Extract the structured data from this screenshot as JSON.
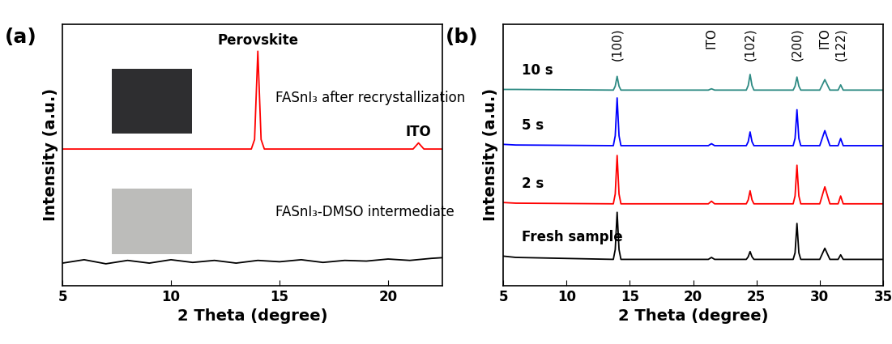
{
  "chart_data": [
    {
      "type": "line",
      "title": "(a)",
      "x_label": "2 Theta (degree)",
      "y_label": "Intensity (a.u.)",
      "xlim": [
        5,
        22.5
      ],
      "xticks": [
        5,
        10,
        15,
        20
      ],
      "ylim": [
        -3.5,
        35
      ],
      "tick_labels": "x",
      "series": [
        {
          "name": "FASnI₃ after recrystallization",
          "color": "#ff0000",
          "x": [
            5,
            13.7,
            13.85,
            14.0,
            14.15,
            14.3,
            21.15,
            21.4,
            21.65,
            22.5
          ],
          "values": [
            16.6,
            16.6,
            18.0,
            31.0,
            18.0,
            16.6,
            16.6,
            17.5,
            16.6,
            16.6
          ]
        },
        {
          "name": "FASnI₃-DMSO intermediate",
          "color": "#000000",
          "x": [
            5,
            6,
            7,
            8,
            9,
            10,
            11,
            12,
            13,
            14,
            15,
            16,
            17,
            18,
            19,
            20,
            21,
            22,
            22.5
          ],
          "values": [
            -0.2,
            0.3,
            -0.3,
            0.2,
            -0.2,
            0.3,
            -0.1,
            0.2,
            -0.2,
            0.2,
            0,
            0.3,
            -0.1,
            0.2,
            0.1,
            0.4,
            0.2,
            0.5,
            0.6
          ]
        }
      ],
      "annotations": [
        {
          "text": "Perovskite",
          "x": 14.0,
          "y": 31.0
        },
        {
          "text": "ITO",
          "x": 21.4,
          "y": 17.5
        }
      ]
    },
    {
      "type": "line",
      "title": "(b)",
      "x_label": "2 Theta (degree)",
      "y_label": "Intensity (a.u.)",
      "xlim": [
        5,
        35
      ],
      "xticks": [
        5,
        10,
        15,
        20,
        25,
        30,
        35
      ],
      "ylim": [
        -4,
        36
      ],
      "tick_labels": "x",
      "x": [
        5,
        6,
        13.7,
        13.85,
        14.0,
        14.15,
        14.3,
        21.2,
        21.45,
        21.7,
        24.2,
        24.35,
        24.5,
        24.65,
        24.8,
        27.9,
        28.05,
        28.2,
        28.35,
        28.5,
        30.0,
        30.4,
        30.8,
        31.45,
        31.65,
        31.85,
        35
      ],
      "series": [
        {
          "name": "Fresh sample",
          "color": "#000000",
          "values": [
            0.5,
            0.3,
            0,
            1.5,
            7.2,
            1.5,
            0,
            0,
            0.3,
            0,
            0,
            0.4,
            1.2,
            0.4,
            0,
            0,
            1.0,
            5.5,
            1.0,
            0,
            0,
            1.7,
            0,
            0,
            0.7,
            0,
            0
          ]
        },
        {
          "name": "2 s",
          "color": "#ff0000",
          "values": [
            8.7,
            8.6,
            8.5,
            10.0,
            15.9,
            10.0,
            8.5,
            8.5,
            8.9,
            8.5,
            8.5,
            9.1,
            10.5,
            9.1,
            8.5,
            8.5,
            9.7,
            14.4,
            9.7,
            8.5,
            8.5,
            11.1,
            8.5,
            8.5,
            9.7,
            8.5,
            8.5
          ]
        },
        {
          "name": "5 s",
          "color": "#0000ff",
          "values": [
            17.6,
            17.5,
            17.4,
            18.9,
            24.7,
            18.9,
            17.4,
            17.4,
            17.7,
            17.4,
            17.4,
            18.0,
            19.5,
            18.0,
            17.4,
            17.4,
            18.5,
            22.9,
            18.5,
            17.4,
            17.4,
            19.7,
            17.4,
            17.4,
            18.5,
            17.4,
            17.4
          ]
        },
        {
          "name": "10 s",
          "color": "#2e8b84",
          "values": [
            26.0,
            26.0,
            25.9,
            26.5,
            28.0,
            26.5,
            25.9,
            25.9,
            26.1,
            25.9,
            25.9,
            26.6,
            28.3,
            26.6,
            25.9,
            25.9,
            26.5,
            27.9,
            26.5,
            25.9,
            25.9,
            27.5,
            25.9,
            25.9,
            26.7,
            25.9,
            25.9
          ]
        }
      ],
      "annotations": [
        {
          "text": "(100)",
          "x": 14.0
        },
        {
          "text": "ITO",
          "x": 21.45
        },
        {
          "text": "(102)",
          "x": 24.5
        },
        {
          "text": "(200)",
          "x": 28.2
        },
        {
          "text": "ITO",
          "x": 30.4
        },
        {
          "text": "(122)",
          "x": 31.65
        }
      ]
    }
  ]
}
